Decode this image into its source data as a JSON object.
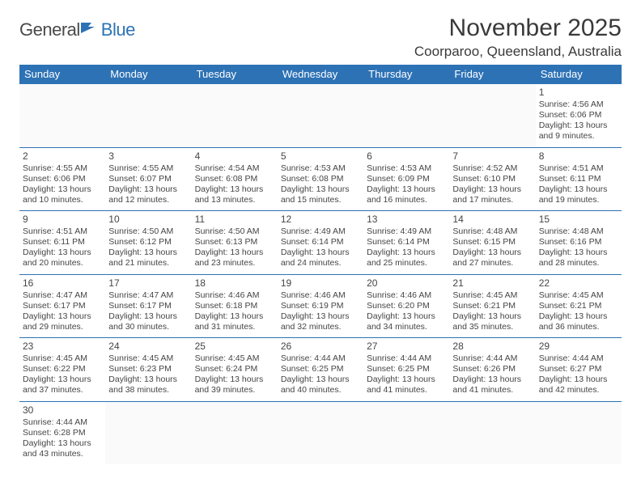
{
  "logo": {
    "text1": "General",
    "text2": "Blue"
  },
  "title": "November 2025",
  "location": "Coorparoo, Queensland, Australia",
  "colors": {
    "header_bg": "#2d72b5",
    "header_fg": "#ffffff",
    "border": "#2d72b5",
    "text": "#454545"
  },
  "weekdays": [
    "Sunday",
    "Monday",
    "Tuesday",
    "Wednesday",
    "Thursday",
    "Friday",
    "Saturday"
  ],
  "cells": [
    {
      "e": 1
    },
    {
      "e": 1
    },
    {
      "e": 1
    },
    {
      "e": 1
    },
    {
      "e": 1
    },
    {
      "e": 1
    },
    {
      "d": "1",
      "sr": "4:56 AM",
      "ss": "6:06 PM",
      "dl": "13 hours and 9 minutes."
    },
    {
      "d": "2",
      "sr": "4:55 AM",
      "ss": "6:06 PM",
      "dl": "13 hours and 10 minutes."
    },
    {
      "d": "3",
      "sr": "4:55 AM",
      "ss": "6:07 PM",
      "dl": "13 hours and 12 minutes."
    },
    {
      "d": "4",
      "sr": "4:54 AM",
      "ss": "6:08 PM",
      "dl": "13 hours and 13 minutes."
    },
    {
      "d": "5",
      "sr": "4:53 AM",
      "ss": "6:08 PM",
      "dl": "13 hours and 15 minutes."
    },
    {
      "d": "6",
      "sr": "4:53 AM",
      "ss": "6:09 PM",
      "dl": "13 hours and 16 minutes."
    },
    {
      "d": "7",
      "sr": "4:52 AM",
      "ss": "6:10 PM",
      "dl": "13 hours and 17 minutes."
    },
    {
      "d": "8",
      "sr": "4:51 AM",
      "ss": "6:11 PM",
      "dl": "13 hours and 19 minutes."
    },
    {
      "d": "9",
      "sr": "4:51 AM",
      "ss": "6:11 PM",
      "dl": "13 hours and 20 minutes."
    },
    {
      "d": "10",
      "sr": "4:50 AM",
      "ss": "6:12 PM",
      "dl": "13 hours and 21 minutes."
    },
    {
      "d": "11",
      "sr": "4:50 AM",
      "ss": "6:13 PM",
      "dl": "13 hours and 23 minutes."
    },
    {
      "d": "12",
      "sr": "4:49 AM",
      "ss": "6:14 PM",
      "dl": "13 hours and 24 minutes."
    },
    {
      "d": "13",
      "sr": "4:49 AM",
      "ss": "6:14 PM",
      "dl": "13 hours and 25 minutes."
    },
    {
      "d": "14",
      "sr": "4:48 AM",
      "ss": "6:15 PM",
      "dl": "13 hours and 27 minutes."
    },
    {
      "d": "15",
      "sr": "4:48 AM",
      "ss": "6:16 PM",
      "dl": "13 hours and 28 minutes."
    },
    {
      "d": "16",
      "sr": "4:47 AM",
      "ss": "6:17 PM",
      "dl": "13 hours and 29 minutes."
    },
    {
      "d": "17",
      "sr": "4:47 AM",
      "ss": "6:17 PM",
      "dl": "13 hours and 30 minutes."
    },
    {
      "d": "18",
      "sr": "4:46 AM",
      "ss": "6:18 PM",
      "dl": "13 hours and 31 minutes."
    },
    {
      "d": "19",
      "sr": "4:46 AM",
      "ss": "6:19 PM",
      "dl": "13 hours and 32 minutes."
    },
    {
      "d": "20",
      "sr": "4:46 AM",
      "ss": "6:20 PM",
      "dl": "13 hours and 34 minutes."
    },
    {
      "d": "21",
      "sr": "4:45 AM",
      "ss": "6:21 PM",
      "dl": "13 hours and 35 minutes."
    },
    {
      "d": "22",
      "sr": "4:45 AM",
      "ss": "6:21 PM",
      "dl": "13 hours and 36 minutes."
    },
    {
      "d": "23",
      "sr": "4:45 AM",
      "ss": "6:22 PM",
      "dl": "13 hours and 37 minutes."
    },
    {
      "d": "24",
      "sr": "4:45 AM",
      "ss": "6:23 PM",
      "dl": "13 hours and 38 minutes."
    },
    {
      "d": "25",
      "sr": "4:45 AM",
      "ss": "6:24 PM",
      "dl": "13 hours and 39 minutes."
    },
    {
      "d": "26",
      "sr": "4:44 AM",
      "ss": "6:25 PM",
      "dl": "13 hours and 40 minutes."
    },
    {
      "d": "27",
      "sr": "4:44 AM",
      "ss": "6:25 PM",
      "dl": "13 hours and 41 minutes."
    },
    {
      "d": "28",
      "sr": "4:44 AM",
      "ss": "6:26 PM",
      "dl": "13 hours and 41 minutes."
    },
    {
      "d": "29",
      "sr": "4:44 AM",
      "ss": "6:27 PM",
      "dl": "13 hours and 42 minutes."
    },
    {
      "d": "30",
      "sr": "4:44 AM",
      "ss": "6:28 PM",
      "dl": "13 hours and 43 minutes."
    },
    {
      "e": 1
    },
    {
      "e": 1
    },
    {
      "e": 1
    },
    {
      "e": 1
    },
    {
      "e": 1
    },
    {
      "e": 1
    }
  ],
  "labels": {
    "sunrise": "Sunrise:",
    "sunset": "Sunset:",
    "daylight": "Daylight:"
  }
}
